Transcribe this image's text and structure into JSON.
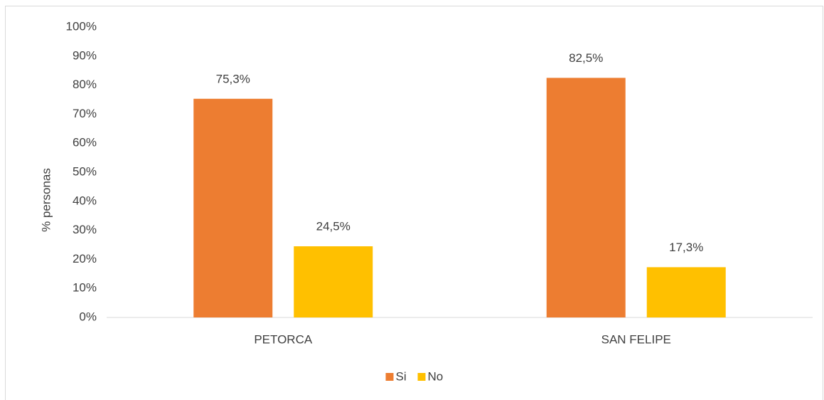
{
  "chart_data": {
    "type": "bar",
    "y_axis_label": "% personas",
    "categories": [
      "PETORCA",
      "SAN FELIPE"
    ],
    "series": [
      {
        "name": "Si",
        "color": "#ed7d31",
        "values": [
          75.3,
          82.5
        ],
        "value_labels": [
          "75,3%",
          "82,5%"
        ]
      },
      {
        "name": "No",
        "color": "#ffc000",
        "values": [
          24.5,
          17.3
        ],
        "value_labels": [
          "24,5%",
          "17,3%"
        ]
      }
    ],
    "ylim": [
      0,
      100
    ],
    "yticks": [
      {
        "value": 0,
        "label": "0%"
      },
      {
        "value": 10,
        "label": "10%"
      },
      {
        "value": 20,
        "label": "20%"
      },
      {
        "value": 30,
        "label": "30%"
      },
      {
        "value": 40,
        "label": "40%"
      },
      {
        "value": 50,
        "label": "50%"
      },
      {
        "value": 60,
        "label": "60%"
      },
      {
        "value": 70,
        "label": "70%"
      },
      {
        "value": 80,
        "label": "80%"
      },
      {
        "value": 90,
        "label": "90%"
      },
      {
        "value": 100,
        "label": "100%"
      }
    ],
    "grid": false,
    "legend": "bottom"
  }
}
